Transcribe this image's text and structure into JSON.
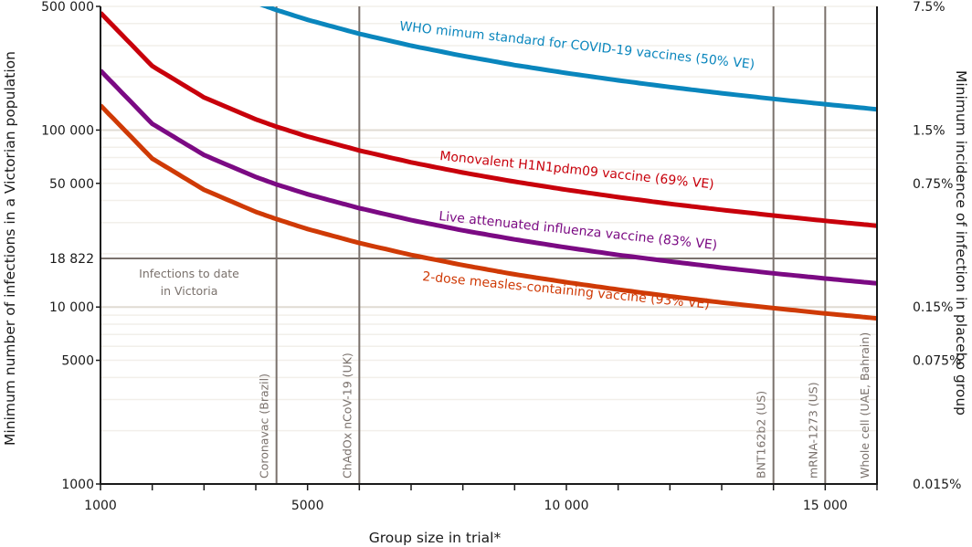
{
  "chart_data": {
    "type": "line",
    "title": "",
    "xlabel": "Group size in trial*",
    "ylabel": "Minimum number of infections in a Victorian population",
    "ylabel_right": "Minimum incidence of infection in placebo group",
    "x_scale": "linear",
    "y_scale": "log",
    "xlim": [
      1000,
      16000
    ],
    "ylim": [
      1000,
      500000
    ],
    "grid": true,
    "x_ticks": [
      1000,
      2000,
      3000,
      4000,
      5000,
      6000,
      7000,
      8000,
      9000,
      10000,
      11000,
      12000,
      13000,
      14000,
      15000,
      16000
    ],
    "x_tick_labels": [
      {
        "value": 1000,
        "label": "1000"
      },
      {
        "value": 5000,
        "label": "5000"
      },
      {
        "value": 10000,
        "label": "10 000"
      },
      {
        "value": 15000,
        "label": "15 000"
      }
    ],
    "y_tick_labels": [
      {
        "value": 500000,
        "label": "500 000"
      },
      {
        "value": 100000,
        "label": "100 000"
      },
      {
        "value": 50000,
        "label": "50 000"
      },
      {
        "value": 18822,
        "label": "18 822"
      },
      {
        "value": 10000,
        "label": "10 000"
      },
      {
        "value": 5000,
        "label": "5000"
      },
      {
        "value": 1000,
        "label": "1000"
      }
    ],
    "y_right_tick_labels": [
      {
        "value": 500000,
        "label": "7.5%"
      },
      {
        "value": 100000,
        "label": "1.5%"
      },
      {
        "value": 50000,
        "label": "0.75%"
      },
      {
        "value": 10000,
        "label": "0.15%"
      },
      {
        "value": 5000,
        "label": "0.075%"
      },
      {
        "value": 1000,
        "label": "0.015%"
      }
    ],
    "x": [
      1000,
      2000,
      3000,
      4000,
      4400,
      5000,
      6000,
      7000,
      8000,
      9000,
      10000,
      11000,
      12000,
      13000,
      14000,
      15000,
      16000
    ],
    "series": [
      {
        "name": "WHO mimum standard for COVID-19 vaccines (50% VE)",
        "color": "#0a86bd",
        "values": [
          null,
          null,
          null,
          525000,
          477000,
          420000,
          350000,
          300000,
          262500,
          233000,
          210000,
          191000,
          175000,
          161500,
          150000,
          140000,
          131000
        ]
      },
      {
        "name": "Monovalent H1N1pdm09 vaccine (69% VE)",
        "color": "#c8000b",
        "values": [
          460000,
          230000,
          153000,
          115000,
          104500,
          92000,
          76700,
          65700,
          57500,
          51100,
          46000,
          41800,
          38300,
          35400,
          32900,
          30700,
          28800
        ]
      },
      {
        "name": "Live attenuated influenza vaccine (83% VE)",
        "color": "#7b0a83",
        "values": [
          217000,
          108500,
          72300,
          54300,
          49300,
          43400,
          36200,
          31000,
          27100,
          24100,
          21700,
          19700,
          18100,
          16700,
          15500,
          14500,
          13600
        ]
      },
      {
        "name": "2-dose measles-containing vaccine (93% VE)",
        "color": "#cf3a06",
        "values": [
          138000,
          69000,
          46000,
          34500,
          31400,
          27600,
          23000,
          19700,
          17250,
          15300,
          13800,
          12550,
          11500,
          10600,
          9860,
          9200,
          8630
        ]
      }
    ],
    "reference_lines": {
      "horizontal": [
        {
          "value": 18822,
          "label_lines": [
            "Infections to date",
            "in Victoria"
          ]
        }
      ],
      "vertical": [
        {
          "value": 4400,
          "label": "Coronavac (Brazil)"
        },
        {
          "value": 6000,
          "label": "ChAdOx nCoV-19 (UK)"
        },
        {
          "value": 14000,
          "label": "BNT162b2 (US)"
        },
        {
          "value": 15000,
          "label": "mRNA-1273 (US)"
        },
        {
          "value": 16000,
          "label": "Whole cell (UAE, Bahrain)"
        }
      ]
    },
    "legend": "inline labels along curves"
  },
  "style": {
    "axis_color": "#1a1a1a",
    "grid_minor_color": "#f2efea",
    "grid_major_color": "#e0dbd3",
    "ref_line_color": "#7a716c"
  }
}
